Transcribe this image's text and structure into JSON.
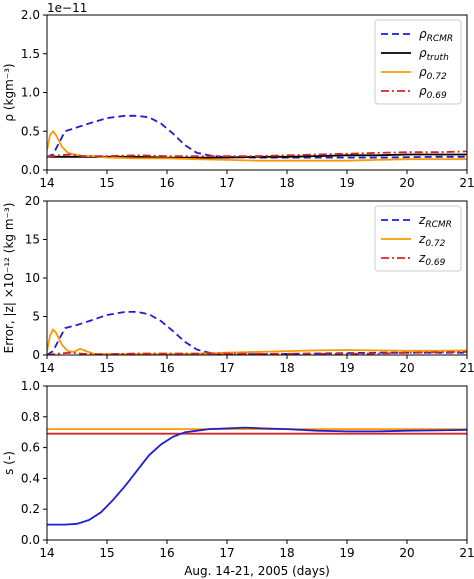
{
  "figure": {
    "xlabel": "Aug. 14-21, 2005 (days)"
  },
  "chart_data": [
    {
      "type": "line",
      "ylabel": "ρ (kgm⁻³)",
      "offset_text": "1e−11",
      "xlim": [
        14,
        21
      ],
      "ylim": [
        0,
        2.0
      ],
      "xticks": [
        "14",
        "15",
        "16",
        "17",
        "18",
        "19",
        "20",
        "21"
      ],
      "yticks": [
        "0.0",
        "0.5",
        "1.0",
        "1.5",
        "2.0"
      ],
      "grid": false,
      "legend_position": "top-right",
      "series": [
        {
          "name": "ρRCMR",
          "label_main": "ρ",
          "label_sub": "RCMR",
          "color": "#1f1fcf",
          "style": "dashed",
          "points": [
            [
              14.0,
              0.17
            ],
            [
              14.1,
              0.2
            ],
            [
              14.2,
              0.35
            ],
            [
              14.3,
              0.5
            ],
            [
              14.5,
              0.55
            ],
            [
              14.7,
              0.6
            ],
            [
              15.0,
              0.67
            ],
            [
              15.3,
              0.7
            ],
            [
              15.5,
              0.7
            ],
            [
              15.7,
              0.68
            ],
            [
              15.9,
              0.6
            ],
            [
              16.1,
              0.47
            ],
            [
              16.3,
              0.32
            ],
            [
              16.5,
              0.22
            ],
            [
              16.7,
              0.19
            ],
            [
              16.9,
              0.17
            ],
            [
              17.5,
              0.16
            ],
            [
              18.5,
              0.16
            ],
            [
              19.5,
              0.16
            ],
            [
              20.5,
              0.17
            ],
            [
              21.0,
              0.17
            ]
          ]
        },
        {
          "name": "ρtruth",
          "label_main": "ρ",
          "label_sub": "truth",
          "color": "#000000",
          "style": "solid",
          "points": [
            [
              14.0,
              0.17
            ],
            [
              14.5,
              0.17
            ],
            [
              15.0,
              0.17
            ],
            [
              15.5,
              0.17
            ],
            [
              16.0,
              0.16
            ],
            [
              16.5,
              0.16
            ],
            [
              17.0,
              0.16
            ],
            [
              17.5,
              0.17
            ],
            [
              18.0,
              0.17
            ],
            [
              18.5,
              0.18
            ],
            [
              19.0,
              0.19
            ],
            [
              19.5,
              0.19
            ],
            [
              20.0,
              0.2
            ],
            [
              20.5,
              0.2
            ],
            [
              21.0,
              0.2
            ]
          ]
        },
        {
          "name": "ρ0.72",
          "label_main": "ρ",
          "label_sub": "0.72",
          "color": "#ff9900",
          "style": "solid",
          "points": [
            [
              14.0,
              0.25
            ],
            [
              14.05,
              0.45
            ],
            [
              14.1,
              0.5
            ],
            [
              14.15,
              0.45
            ],
            [
              14.25,
              0.3
            ],
            [
              14.35,
              0.22
            ],
            [
              14.45,
              0.2
            ],
            [
              14.6,
              0.18
            ],
            [
              14.8,
              0.18
            ],
            [
              15.0,
              0.16
            ],
            [
              15.5,
              0.15
            ],
            [
              16.0,
              0.15
            ],
            [
              16.5,
              0.14
            ],
            [
              17.0,
              0.13
            ],
            [
              17.5,
              0.12
            ],
            [
              18.0,
              0.12
            ],
            [
              18.5,
              0.12
            ],
            [
              19.0,
              0.12
            ],
            [
              19.5,
              0.13
            ],
            [
              20.0,
              0.14
            ],
            [
              20.5,
              0.14
            ],
            [
              21.0,
              0.14
            ]
          ]
        },
        {
          "name": "ρ0.69",
          "label_main": "ρ",
          "label_sub": "0.69",
          "color": "#d62728",
          "style": "dashdot",
          "points": [
            [
              14.0,
              0.17
            ],
            [
              14.2,
              0.19
            ],
            [
              14.4,
              0.2
            ],
            [
              14.6,
              0.18
            ],
            [
              14.8,
              0.18
            ],
            [
              15.0,
              0.18
            ],
            [
              15.5,
              0.19
            ],
            [
              16.0,
              0.18
            ],
            [
              16.5,
              0.18
            ],
            [
              17.0,
              0.18
            ],
            [
              17.5,
              0.18
            ],
            [
              18.0,
              0.19
            ],
            [
              18.5,
              0.2
            ],
            [
              19.0,
              0.21
            ],
            [
              19.5,
              0.22
            ],
            [
              20.0,
              0.23
            ],
            [
              20.5,
              0.23
            ],
            [
              21.0,
              0.24
            ]
          ]
        }
      ]
    },
    {
      "type": "line",
      "ylabel": "Error, |z| ×10⁻¹² (kg m⁻³)",
      "xlim": [
        14,
        21
      ],
      "ylim": [
        0,
        20
      ],
      "xticks": [
        "14",
        "15",
        "16",
        "17",
        "18",
        "19",
        "20",
        "21"
      ],
      "yticks": [
        "0",
        "5",
        "10",
        "15",
        "20"
      ],
      "grid": false,
      "legend_position": "top-right",
      "series": [
        {
          "name": "zRCMR",
          "label_main": "z",
          "label_sub": "RCMR",
          "color": "#1f1fcf",
          "style": "dashed",
          "points": [
            [
              14.0,
              0.0
            ],
            [
              14.1,
              0.5
            ],
            [
              14.2,
              2.0
            ],
            [
              14.3,
              3.5
            ],
            [
              14.5,
              3.9
            ],
            [
              14.7,
              4.4
            ],
            [
              15.0,
              5.2
            ],
            [
              15.3,
              5.6
            ],
            [
              15.5,
              5.6
            ],
            [
              15.7,
              5.3
            ],
            [
              15.9,
              4.4
            ],
            [
              16.1,
              3.1
            ],
            [
              16.3,
              1.7
            ],
            [
              16.5,
              0.7
            ],
            [
              16.7,
              0.3
            ],
            [
              16.9,
              0.1
            ],
            [
              17.5,
              0.1
            ],
            [
              18.5,
              0.2
            ],
            [
              19.5,
              0.3
            ],
            [
              20.5,
              0.3
            ],
            [
              21.0,
              0.3
            ]
          ]
        },
        {
          "name": "z0.72",
          "label_main": "z",
          "label_sub": "0.72",
          "color": "#ff9900",
          "style": "solid",
          "points": [
            [
              14.0,
              0.5
            ],
            [
              14.05,
              2.5
            ],
            [
              14.1,
              3.3
            ],
            [
              14.15,
              2.9
            ],
            [
              14.25,
              1.3
            ],
            [
              14.35,
              0.5
            ],
            [
              14.45,
              0.4
            ],
            [
              14.55,
              0.8
            ],
            [
              14.65,
              0.5
            ],
            [
              14.8,
              0.1
            ],
            [
              15.0,
              0.1
            ],
            [
              15.5,
              0.1
            ],
            [
              16.0,
              0.1
            ],
            [
              16.5,
              0.15
            ],
            [
              17.0,
              0.3
            ],
            [
              17.5,
              0.4
            ],
            [
              18.0,
              0.5
            ],
            [
              18.5,
              0.6
            ],
            [
              19.0,
              0.65
            ],
            [
              19.5,
              0.6
            ],
            [
              20.0,
              0.55
            ],
            [
              20.5,
              0.55
            ],
            [
              21.0,
              0.6
            ]
          ]
        },
        {
          "name": "z0.69",
          "label_main": "z",
          "label_sub": "0.69",
          "color": "#d62728",
          "style": "dashdot",
          "points": [
            [
              14.0,
              0.0
            ],
            [
              14.2,
              0.2
            ],
            [
              14.4,
              0.3
            ],
            [
              14.6,
              0.15
            ],
            [
              14.8,
              0.1
            ],
            [
              15.0,
              0.1
            ],
            [
              15.5,
              0.2
            ],
            [
              16.0,
              0.2
            ],
            [
              16.5,
              0.2
            ],
            [
              17.0,
              0.2
            ],
            [
              17.5,
              0.15
            ],
            [
              18.0,
              0.15
            ],
            [
              18.5,
              0.15
            ],
            [
              19.0,
              0.15
            ],
            [
              19.5,
              0.2
            ],
            [
              20.0,
              0.3
            ],
            [
              20.5,
              0.35
            ],
            [
              21.0,
              0.4
            ]
          ]
        }
      ]
    },
    {
      "type": "line",
      "ylabel": "s (-)",
      "xlabel": "Aug. 14-21, 2005 (days)",
      "xlim": [
        14,
        21
      ],
      "ylim": [
        0,
        1.0
      ],
      "xticks": [
        "14",
        "15",
        "16",
        "17",
        "18",
        "19",
        "20",
        "21"
      ],
      "yticks": [
        "0.0",
        "0.2",
        "0.4",
        "0.6",
        "0.8",
        "1.0"
      ],
      "grid": false,
      "series": [
        {
          "color": "#ff9900",
          "style": "solid",
          "points": [
            [
              14.0,
              0.72
            ],
            [
              21.0,
              0.72
            ]
          ]
        },
        {
          "color": "#d62728",
          "style": "solid",
          "points": [
            [
              14.0,
              0.69
            ],
            [
              21.0,
              0.69
            ]
          ]
        },
        {
          "color": "#1f1fcf",
          "style": "solid",
          "points": [
            [
              14.0,
              0.1
            ],
            [
              14.3,
              0.1
            ],
            [
              14.5,
              0.105
            ],
            [
              14.7,
              0.13
            ],
            [
              14.9,
              0.18
            ],
            [
              15.1,
              0.26
            ],
            [
              15.3,
              0.35
            ],
            [
              15.5,
              0.45
            ],
            [
              15.7,
              0.55
            ],
            [
              15.9,
              0.62
            ],
            [
              16.1,
              0.67
            ],
            [
              16.3,
              0.7
            ],
            [
              16.5,
              0.71
            ],
            [
              16.7,
              0.72
            ],
            [
              17.0,
              0.725
            ],
            [
              17.3,
              0.73
            ],
            [
              17.6,
              0.725
            ],
            [
              18.0,
              0.72
            ],
            [
              18.5,
              0.71
            ],
            [
              19.0,
              0.705
            ],
            [
              19.5,
              0.705
            ],
            [
              20.0,
              0.71
            ],
            [
              20.5,
              0.712
            ],
            [
              21.0,
              0.715
            ]
          ]
        }
      ]
    }
  ]
}
